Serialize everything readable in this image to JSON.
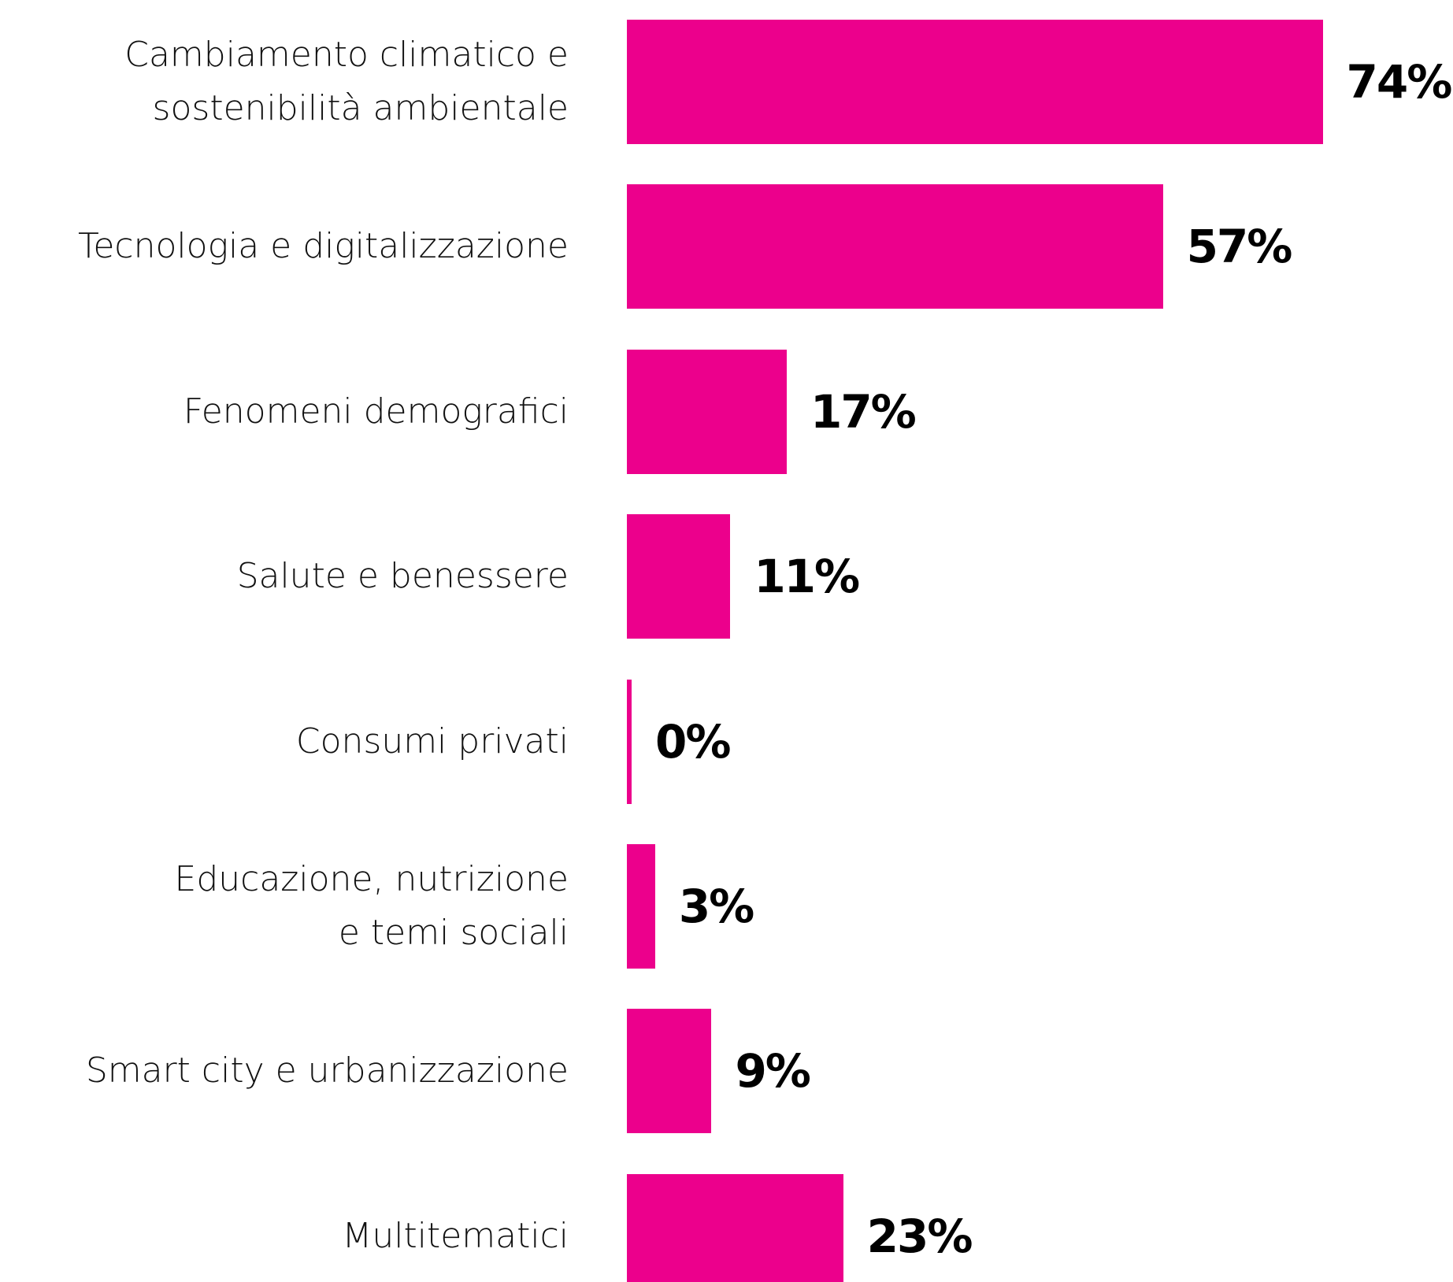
{
  "chart_data": {
    "type": "bar",
    "orientation": "horizontal",
    "categories": [
      "Cambiamento climatico e\nsostenibilità ambientale",
      "Tecnologia e digitalizzazione",
      "Fenomeni demografici",
      "Salute e benessere",
      "Consumi privati",
      "Educazione, nutrizione\ne temi sociali",
      "Smart city e urbanizzazione",
      "Multitematici"
    ],
    "values": [
      74,
      57,
      17,
      11,
      0,
      3,
      9,
      23
    ],
    "value_labels": [
      "74%",
      "57%",
      "17%",
      "11%",
      "0%",
      "3%",
      "9%",
      "23%"
    ],
    "color": "#ec008c"
  }
}
